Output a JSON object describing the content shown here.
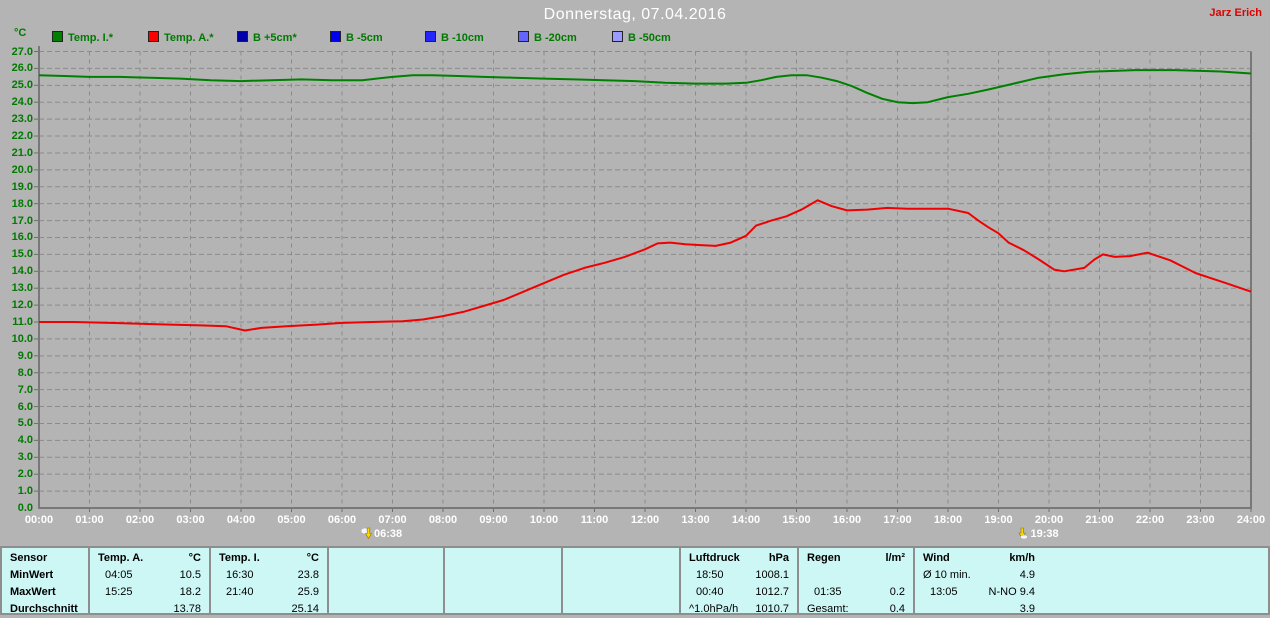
{
  "window": {
    "title": "Donnerstag, 07.04.2016",
    "author": "Jarz Erich"
  },
  "legend": {
    "unit": "°C",
    "items": [
      {
        "label": "Temp. I.*",
        "color": "#008000"
      },
      {
        "label": "Temp. A.*",
        "color": "#ff0000"
      },
      {
        "label": "B +5cm*",
        "color": "#0000a8"
      },
      {
        "label": "B -5cm",
        "color": "#0000f0"
      },
      {
        "label": "B -10cm",
        "color": "#2424ff"
      },
      {
        "label": "B -20cm",
        "color": "#6464ff"
      },
      {
        "label": "B -50cm",
        "color": "#9a9aff"
      }
    ]
  },
  "chart_data": {
    "type": "line",
    "title": "Donnerstag, 07.04.2016",
    "xlabel": "",
    "ylabel": "°C",
    "ylim": [
      0,
      27
    ],
    "xlim_hours": [
      0,
      24
    ],
    "grid": true,
    "y_axis": {
      "labels": [
        "27.0",
        "26.0",
        "25.0",
        "24.0",
        "23.0",
        "22.0",
        "21.0",
        "20.0",
        "19.0",
        "18.0",
        "17.0",
        "16.0",
        "15.0",
        "14.0",
        "13.0",
        "12.0",
        "11.0",
        "10.0",
        "9.0",
        "8.0",
        "7.0",
        "6.0",
        "5.0",
        "4.0",
        "3.0",
        "2.0",
        "1.0",
        "0.0"
      ]
    },
    "x_axis": {
      "ticks": [
        "00:00",
        "01:00",
        "02:00",
        "03:00",
        "04:00",
        "05:00",
        "06:00",
        "07:00",
        "08:00",
        "09:00",
        "10:00",
        "11:00",
        "12:00",
        "13:00",
        "14:00",
        "15:00",
        "16:00",
        "17:00",
        "18:00",
        "19:00",
        "20:00",
        "21:00",
        "22:00",
        "23:00",
        "24:00"
      ]
    },
    "markers": [
      {
        "type": "sunrise",
        "time": "06:38",
        "hour": 6.633
      },
      {
        "type": "sunset",
        "time": "19:38",
        "hour": 19.633
      }
    ],
    "series": [
      {
        "name": "Temp. I.",
        "color": "#008000",
        "points": [
          [
            0,
            25.6
          ],
          [
            0.5,
            25.55
          ],
          [
            1,
            25.5
          ],
          [
            1.6,
            25.5
          ],
          [
            2.2,
            25.45
          ],
          [
            2.8,
            25.4
          ],
          [
            3.4,
            25.3
          ],
          [
            4,
            25.25
          ],
          [
            4.6,
            25.3
          ],
          [
            5.2,
            25.35
          ],
          [
            5.8,
            25.3
          ],
          [
            6.4,
            25.3
          ],
          [
            7,
            25.5
          ],
          [
            7.4,
            25.6
          ],
          [
            7.8,
            25.6
          ],
          [
            8.3,
            25.55
          ],
          [
            8.8,
            25.5
          ],
          [
            9.4,
            25.45
          ],
          [
            10,
            25.4
          ],
          [
            10.6,
            25.35
          ],
          [
            11.2,
            25.3
          ],
          [
            11.8,
            25.25
          ],
          [
            12.4,
            25.15
          ],
          [
            13,
            25.1
          ],
          [
            13.6,
            25.1
          ],
          [
            14,
            25.15
          ],
          [
            14.3,
            25.3
          ],
          [
            14.6,
            25.5
          ],
          [
            14.9,
            25.6
          ],
          [
            15.2,
            25.6
          ],
          [
            15.5,
            25.45
          ],
          [
            15.8,
            25.25
          ],
          [
            16.1,
            24.95
          ],
          [
            16.4,
            24.55
          ],
          [
            16.7,
            24.2
          ],
          [
            17,
            24.0
          ],
          [
            17.3,
            23.95
          ],
          [
            17.6,
            24.0
          ],
          [
            18,
            24.3
          ],
          [
            18.4,
            24.5
          ],
          [
            18.8,
            24.75
          ],
          [
            19.3,
            25.1
          ],
          [
            19.8,
            25.45
          ],
          [
            20.3,
            25.65
          ],
          [
            20.8,
            25.8
          ],
          [
            21.3,
            25.85
          ],
          [
            21.7,
            25.9
          ],
          [
            22.1,
            25.9
          ],
          [
            22.5,
            25.9
          ],
          [
            23,
            25.85
          ],
          [
            23.4,
            25.82
          ],
          [
            23.7,
            25.76
          ],
          [
            24,
            25.7
          ]
        ]
      },
      {
        "name": "Temp. A.",
        "color": "#f00000",
        "points": [
          [
            0,
            11.0
          ],
          [
            0.7,
            11.0
          ],
          [
            1.4,
            10.95
          ],
          [
            2,
            10.9
          ],
          [
            2.6,
            10.85
          ],
          [
            3.2,
            10.8
          ],
          [
            3.7,
            10.75
          ],
          [
            4.08,
            10.5
          ],
          [
            4.4,
            10.65
          ],
          [
            4.9,
            10.75
          ],
          [
            5.5,
            10.85
          ],
          [
            6,
            10.95
          ],
          [
            6.6,
            11.0
          ],
          [
            7.2,
            11.05
          ],
          [
            7.6,
            11.15
          ],
          [
            8,
            11.35
          ],
          [
            8.4,
            11.6
          ],
          [
            8.8,
            11.95
          ],
          [
            9.2,
            12.3
          ],
          [
            9.6,
            12.8
          ],
          [
            10,
            13.3
          ],
          [
            10.4,
            13.8
          ],
          [
            10.8,
            14.2
          ],
          [
            11.2,
            14.5
          ],
          [
            11.6,
            14.85
          ],
          [
            12,
            15.3
          ],
          [
            12.25,
            15.65
          ],
          [
            12.5,
            15.7
          ],
          [
            12.8,
            15.6
          ],
          [
            13.1,
            15.55
          ],
          [
            13.4,
            15.5
          ],
          [
            13.7,
            15.7
          ],
          [
            14,
            16.1
          ],
          [
            14.2,
            16.7
          ],
          [
            14.5,
            17.0
          ],
          [
            14.8,
            17.25
          ],
          [
            15.1,
            17.65
          ],
          [
            15.42,
            18.2
          ],
          [
            15.7,
            17.85
          ],
          [
            16,
            17.6
          ],
          [
            16.4,
            17.65
          ],
          [
            16.8,
            17.75
          ],
          [
            17.2,
            17.7
          ],
          [
            17.6,
            17.7
          ],
          [
            18,
            17.7
          ],
          [
            18.4,
            17.45
          ],
          [
            18.6,
            17.0
          ],
          [
            18.8,
            16.6
          ],
          [
            19,
            16.25
          ],
          [
            19.2,
            15.7
          ],
          [
            19.5,
            15.25
          ],
          [
            19.8,
            14.7
          ],
          [
            20.1,
            14.1
          ],
          [
            20.3,
            14.0
          ],
          [
            20.7,
            14.2
          ],
          [
            20.9,
            14.7
          ],
          [
            21.07,
            15.0
          ],
          [
            21.3,
            14.85
          ],
          [
            21.6,
            14.9
          ],
          [
            21.95,
            15.1
          ],
          [
            22.4,
            14.65
          ],
          [
            22.7,
            14.2
          ],
          [
            22.9,
            13.9
          ],
          [
            23.2,
            13.6
          ],
          [
            23.5,
            13.3
          ],
          [
            23.9,
            12.9
          ],
          [
            24,
            12.8
          ]
        ]
      }
    ]
  },
  "table": {
    "row_labels": [
      "Sensor",
      "MinWert",
      "MaxWert",
      "Durchschnitt"
    ],
    "columns": [
      {
        "name": "Temp. A.",
        "unit": "°C",
        "rows": [
          [
            "04:05",
            "10.5"
          ],
          [
            "15:25",
            "18.2"
          ],
          [
            "",
            "13.78"
          ]
        ]
      },
      {
        "name": "Temp. I.",
        "unit": "°C",
        "rows": [
          [
            "16:30",
            "23.8"
          ],
          [
            "21:40",
            "25.9"
          ],
          [
            "",
            "25.14"
          ]
        ]
      },
      {
        "name": "Luftdruck",
        "unit": "hPa",
        "rows": [
          [
            "18:50",
            "1008.1"
          ],
          [
            "00:40",
            "1012.7"
          ],
          [
            "^1.0hPa/h",
            "1010.7"
          ]
        ]
      },
      {
        "name": "Regen",
        "unit": "l/m²",
        "rows": [
          [
            "",
            ""
          ],
          [
            "01:35",
            "0.2"
          ],
          [
            "Gesamt:",
            "0.4"
          ]
        ]
      },
      {
        "name": "Wind",
        "unit": "km/h",
        "rows": [
          [
            "Ø 10 min.",
            "4.9"
          ],
          [
            "13:05",
            "N-NO 9.4"
          ],
          [
            "",
            "3.9"
          ]
        ]
      }
    ]
  }
}
